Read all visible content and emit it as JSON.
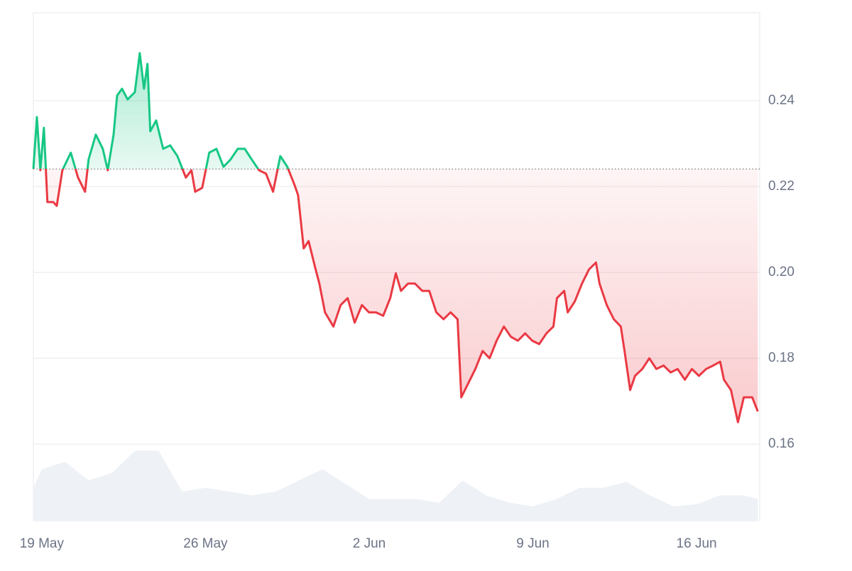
{
  "chart_data": {
    "type": "line",
    "x": [
      -0.36,
      -0.21,
      -0.06,
      0.09,
      0.24,
      0.49,
      0.64,
      0.88,
      1.24,
      1.55,
      1.85,
      2.0,
      2.31,
      2.61,
      2.82,
      3.07,
      3.22,
      3.43,
      3.67,
      3.98,
      4.19,
      4.37,
      4.52,
      4.64,
      4.89,
      5.19,
      5.49,
      5.8,
      6.16,
      6.4,
      6.56,
      6.86,
      7.16,
      7.47,
      7.77,
      8.07,
      8.38,
      8.68,
      8.98,
      9.29,
      9.59,
      9.89,
      10.2,
      10.5,
      10.8,
      10.96,
      11.2,
      11.41,
      11.71,
      11.87,
      12.11,
      12.47,
      12.78,
      13.08,
      13.38,
      13.69,
      13.99,
      14.29,
      14.6,
      14.9,
      15.14,
      15.36,
      15.66,
      15.96,
      16.27,
      16.57,
      16.87,
      17.18,
      17.48,
      17.78,
      17.94,
      18.24,
      18.54,
      18.85,
      19.15,
      19.45,
      19.76,
      20.06,
      20.36,
      20.67,
      20.97,
      21.27,
      21.58,
      21.88,
      22.03,
      22.34,
      22.49,
      22.79,
      23.1,
      23.4,
      23.7,
      23.85,
      24.16,
      24.46,
      24.76,
      24.92,
      25.16,
      25.37,
      25.68,
      25.98,
      26.28,
      26.59,
      26.89,
      27.19,
      27.5,
      27.8,
      28.1,
      28.41,
      28.71,
      29.01,
      29.17,
      29.47,
      29.77,
      30.02,
      30.38,
      30.62
    ],
    "values": [
      0.2241,
      0.2362,
      0.2238,
      0.2337,
      0.2164,
      0.2164,
      0.2155,
      0.2238,
      0.2279,
      0.2221,
      0.2188,
      0.2263,
      0.2321,
      0.2288,
      0.2238,
      0.2321,
      0.2412,
      0.2428,
      0.2403,
      0.242,
      0.2511,
      0.2428,
      0.2486,
      0.2329,
      0.2354,
      0.2288,
      0.2296,
      0.2271,
      0.2221,
      0.2238,
      0.2188,
      0.2197,
      0.2279,
      0.2288,
      0.2246,
      0.2263,
      0.2288,
      0.2288,
      0.2263,
      0.2238,
      0.223,
      0.2188,
      0.2271,
      0.2246,
      0.2205,
      0.218,
      0.2056,
      0.2073,
      0.2007,
      0.1974,
      0.1907,
      0.1874,
      0.1924,
      0.194,
      0.1883,
      0.1924,
      0.1907,
      0.1907,
      0.1899,
      0.194,
      0.1998,
      0.1957,
      0.1974,
      0.1974,
      0.1957,
      0.1957,
      0.1907,
      0.1891,
      0.1907,
      0.1891,
      0.1709,
      0.1742,
      0.1775,
      0.1817,
      0.18,
      0.1841,
      0.1874,
      0.185,
      0.1841,
      0.1858,
      0.1841,
      0.1833,
      0.1858,
      0.1874,
      0.194,
      0.1957,
      0.1907,
      0.1932,
      0.1974,
      0.2007,
      0.2023,
      0.1974,
      0.1924,
      0.1891,
      0.1874,
      0.1817,
      0.1726,
      0.1759,
      0.1775,
      0.18,
      0.1775,
      0.1783,
      0.1767,
      0.1775,
      0.175,
      0.1775,
      0.1759,
      0.1775,
      0.1783,
      0.1792,
      0.175,
      0.1726,
      0.1651,
      0.1709,
      0.1709,
      0.1676
    ],
    "baseline": 0.2241,
    "up_color": "#16c784",
    "down_color": "#ea3943",
    "xlim": [
      -0.36,
      30.7
    ],
    "xticks": [
      {
        "value": 0,
        "label": "19 May"
      },
      {
        "value": 7,
        "label": "26 May"
      },
      {
        "value": 14,
        "label": "2 Jun"
      },
      {
        "value": 21,
        "label": "9 Jun"
      },
      {
        "value": 28,
        "label": "16 Jun"
      }
    ],
    "ylim": [
      0.142,
      0.2605
    ],
    "yticks": [
      0.16,
      0.18,
      {
        "value": 0.2,
        "label": "0.20"
      },
      0.22,
      0.24
    ],
    "grid": true,
    "volume": {
      "color": "#eef1f5",
      "x": [
        -0.36,
        0,
        1,
        2,
        3,
        4,
        5,
        6,
        7,
        8,
        9,
        10,
        11,
        12,
        13,
        14,
        15,
        16,
        17,
        18,
        19,
        20,
        21,
        22,
        23,
        24,
        25,
        26,
        27,
        28,
        29,
        30,
        30.62
      ],
      "values": [
        45,
        70,
        80,
        55,
        65,
        95,
        95,
        40,
        45,
        40,
        35,
        40,
        55,
        70,
        50,
        30,
        30,
        30,
        25,
        55,
        35,
        25,
        20,
        30,
        45,
        45,
        53,
        35,
        20,
        23,
        35,
        35,
        30
      ],
      "lim": [
        0,
        100
      ]
    }
  }
}
